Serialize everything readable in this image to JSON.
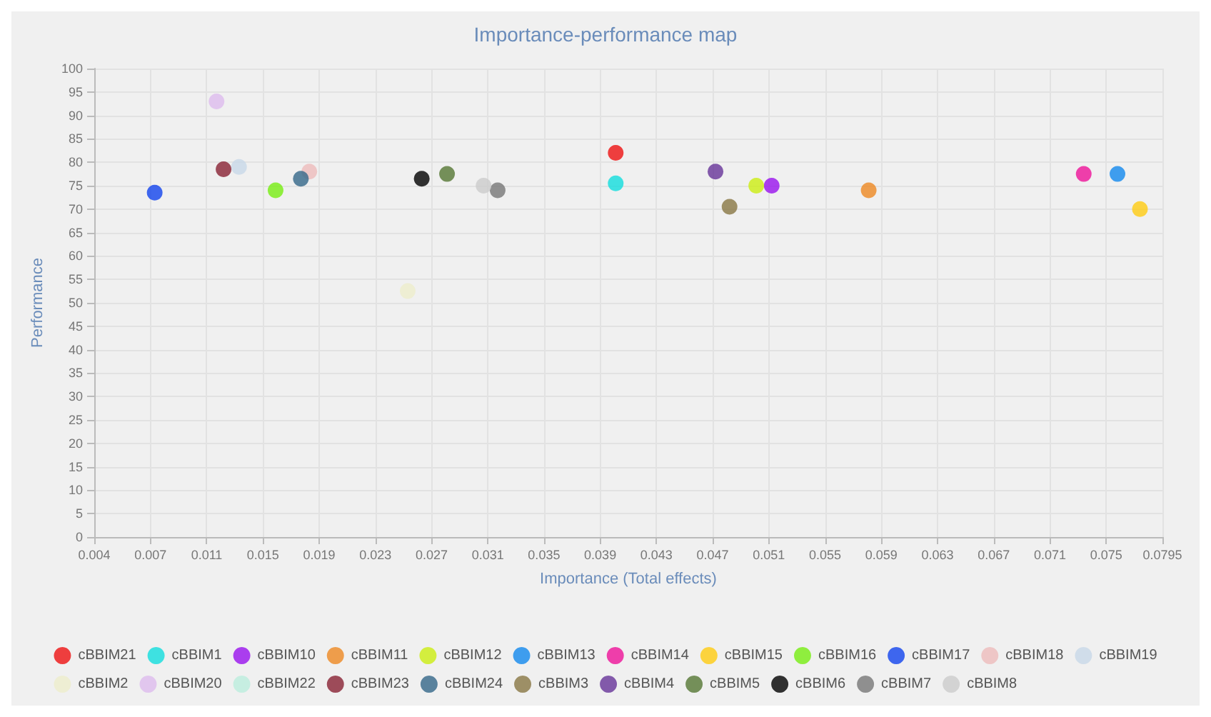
{
  "chart_data": {
    "type": "scatter",
    "title": "Importance-performance map",
    "xlabel": "Importance (Total effects)",
    "ylabel": "Performance",
    "xlim": [
      0.0035,
      0.0795
    ],
    "xticks": [
      {
        "value": 0.0035,
        "label": "0.004"
      },
      {
        "value": 0.0075,
        "label": "0.007"
      },
      {
        "value": 0.0115,
        "label": "0.011"
      },
      {
        "value": 0.0155,
        "label": "0.015"
      },
      {
        "value": 0.0195,
        "label": "0.019"
      },
      {
        "value": 0.0235,
        "label": "0.023"
      },
      {
        "value": 0.0275,
        "label": "0.027"
      },
      {
        "value": 0.0315,
        "label": "0.031"
      },
      {
        "value": 0.0355,
        "label": "0.035"
      },
      {
        "value": 0.0395,
        "label": "0.039"
      },
      {
        "value": 0.0435,
        "label": "0.043"
      },
      {
        "value": 0.0475,
        "label": "0.047"
      },
      {
        "value": 0.0515,
        "label": "0.051"
      },
      {
        "value": 0.0555,
        "label": "0.055"
      },
      {
        "value": 0.0595,
        "label": "0.059"
      },
      {
        "value": 0.0635,
        "label": "0.063"
      },
      {
        "value": 0.0675,
        "label": "0.067"
      },
      {
        "value": 0.0715,
        "label": "0.071"
      },
      {
        "value": 0.0755,
        "label": "0.075"
      },
      {
        "value": 0.0795,
        "label": "0.0795"
      }
    ],
    "ylim": [
      0,
      100
    ],
    "yticks": [
      0,
      5,
      10,
      15,
      20,
      25,
      30,
      35,
      40,
      45,
      50,
      55,
      60,
      65,
      70,
      75,
      80,
      85,
      90,
      95,
      100
    ],
    "grid": true,
    "legend": "bottom",
    "marker": "circle",
    "series": [
      {
        "name": "cBBIM21",
        "color": "#ee1111",
        "x": [
          0.0406
        ],
        "values": [
          82
        ]
      },
      {
        "name": "cBBIM1",
        "color": "#11dddd",
        "x": [
          0.0406
        ],
        "values": [
          75.5
        ]
      },
      {
        "name": "cBBIM10",
        "color": "#9911ee",
        "x": [
          0.0517
        ],
        "values": [
          75
        ]
      },
      {
        "name": "cBBIM11",
        "color": "#ee8822",
        "x": [
          0.0586
        ],
        "values": [
          74
        ]
      },
      {
        "name": "cBBIM12",
        "color": "#ccee11",
        "x": [
          0.0506
        ],
        "values": [
          75
        ]
      },
      {
        "name": "cBBIM13",
        "color": "#1188ee",
        "x": [
          0.0763
        ],
        "values": [
          77.5
        ]
      },
      {
        "name": "cBBIM14",
        "color": "#ee1199",
        "x": [
          0.0739
        ],
        "values": [
          77.5
        ]
      },
      {
        "name": "cBBIM15",
        "color": "#ffcc11",
        "x": [
          0.0779
        ],
        "values": [
          70
        ]
      },
      {
        "name": "cBBIM16",
        "color": "#77ee11",
        "x": [
          0.0164
        ],
        "values": [
          74
        ]
      },
      {
        "name": "cBBIM17",
        "color": "#1144ee",
        "x": [
          0.0078
        ],
        "values": [
          73.5
        ]
      },
      {
        "name": "cBBIM18",
        "color": "#eebbbb",
        "x": [
          0.0188
        ],
        "values": [
          78
        ]
      },
      {
        "name": "cBBIM19",
        "color": "#c8d8e8",
        "x": [
          0.0138
        ],
        "values": [
          79
        ]
      },
      {
        "name": "cBBIM2",
        "color": "#eeeecc",
        "x": [
          0.0258
        ],
        "values": [
          52.5
        ]
      },
      {
        "name": "cBBIM20",
        "color": "#ddbbee",
        "x": [
          0.0122
        ],
        "values": [
          93
        ]
      },
      {
        "name": "cBBIM22",
        "color": "#bbeedd",
        "x": [
          null
        ],
        "values": [
          null
        ]
      },
      {
        "name": "cBBIM23",
        "color": "#882233",
        "x": [
          0.0127
        ],
        "values": [
          78.5
        ]
      },
      {
        "name": "cBBIM24",
        "color": "#336688",
        "x": [
          0.0182
        ],
        "values": [
          76.5
        ]
      },
      {
        "name": "cBBIM3",
        "color": "#887744",
        "x": [
          0.0487
        ],
        "values": [
          70.5
        ]
      },
      {
        "name": "cBBIM4",
        "color": "#663399",
        "x": [
          0.0477
        ],
        "values": [
          78
        ]
      },
      {
        "name": "cBBIM5",
        "color": "#557733",
        "x": [
          0.0286
        ],
        "values": [
          77.5
        ]
      },
      {
        "name": "cBBIM6",
        "color": "#000000",
        "x": [
          0.0268
        ],
        "values": [
          76.5
        ]
      },
      {
        "name": "cBBIM7",
        "color": "#777777",
        "x": [
          0.0322
        ],
        "values": [
          74
        ]
      },
      {
        "name": "cBBIM8",
        "color": "#cccccc",
        "x": [
          0.0312
        ],
        "values": [
          75
        ]
      }
    ]
  }
}
